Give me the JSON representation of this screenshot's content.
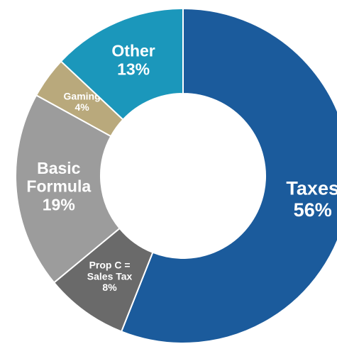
{
  "chart_data": {
    "type": "donut",
    "categories": [
      "Taxes",
      "Prop C =\nSales Tax",
      "Basic\nFormula",
      "Gaming",
      "Other"
    ],
    "values": [
      56,
      8,
      19,
      4,
      13
    ],
    "value_labels": [
      "56%",
      "8%",
      "19%",
      "4%",
      "13%"
    ],
    "colors": [
      "#1b5b9c",
      "#6a6a6a",
      "#9c9c9c",
      "#b9a97c",
      "#1b97bb"
    ]
  }
}
